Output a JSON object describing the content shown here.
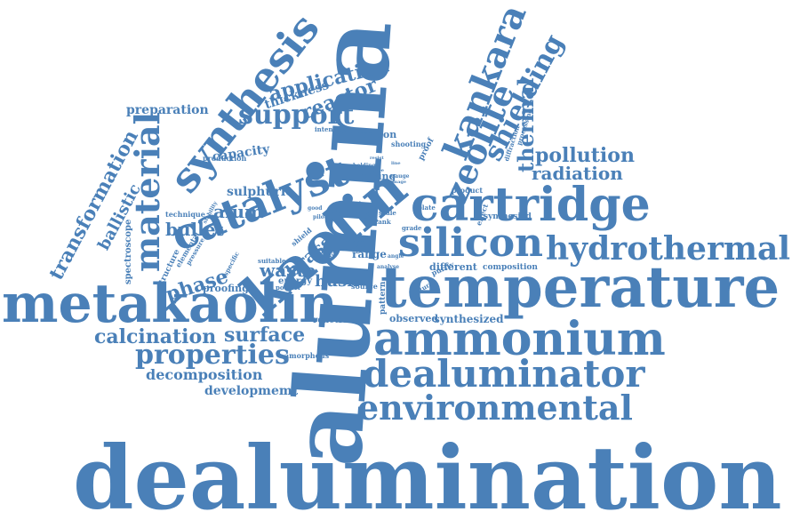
{
  "color": "#4a80b8",
  "words": [
    "dealumination",
    "alumina",
    "temperature",
    "metakaolin",
    "ammonium",
    "kaolin",
    "cartridge",
    "catalyst",
    "silicon",
    "hydrothermal",
    "synthesis",
    "dealuminator",
    "environmental",
    "zeolite",
    "kankara",
    "material",
    "support",
    "properties",
    "surface",
    "calcination",
    "shielding",
    "thermal",
    "transformation",
    "pollution",
    "radiation",
    "application",
    "reactor",
    "phase",
    "bullet",
    "alum",
    "waste",
    "husk",
    "brass",
    "ballistic",
    "decomposition",
    "developmemt",
    "capacity",
    "sulphuric",
    "preparation",
    "thickness",
    "synthesized",
    "formation",
    "observed",
    "reaction",
    "different",
    "composition",
    "energy",
    "mixing",
    "spectroscope",
    "structure",
    "proofing",
    "rice",
    "range",
    "study",
    "ray",
    "technique",
    "elemental",
    "intensity",
    "production",
    "shooting",
    "proof",
    "processing",
    "diffraction",
    "synthesied",
    "product",
    "purity",
    "pattern",
    "source",
    "amorphous",
    "plate",
    "effect",
    "grade",
    "scale",
    "tank",
    "unit",
    "shield",
    "suitable",
    "powder",
    "stability",
    "pressure",
    "specific",
    "nature",
    "holding",
    "gauge",
    "analyse",
    "angle",
    "good",
    "pilot",
    "result",
    "hatch",
    "resist",
    "line",
    "type",
    "image"
  ]
}
